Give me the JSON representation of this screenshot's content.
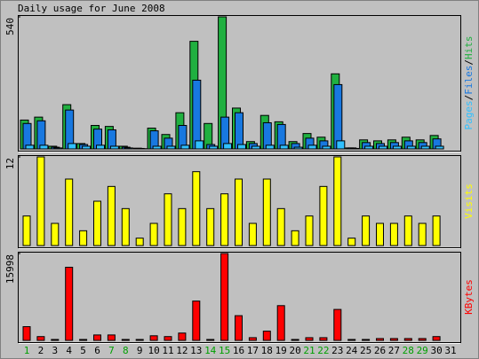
{
  "chart_data": [
    {
      "type": "bar",
      "title": "Daily usage for June 2008",
      "categories": [
        "1",
        "2",
        "3",
        "4",
        "5",
        "6",
        "7",
        "8",
        "9",
        "10",
        "11",
        "12",
        "13",
        "14",
        "15",
        "16",
        "17",
        "18",
        "19",
        "20",
        "21",
        "22",
        "23",
        "24",
        "25",
        "26",
        "27",
        "28",
        "29",
        "30",
        "31"
      ],
      "category_colors": [
        "#00a000",
        "#000000",
        "#000000",
        "#000000",
        "#000000",
        "#000000",
        "#00a000",
        "#00a000",
        "#000000",
        "#000000",
        "#000000",
        "#000000",
        "#000000",
        "#00a000",
        "#00a000",
        "#000000",
        "#000000",
        "#000000",
        "#000000",
        "#000000",
        "#00a000",
        "#00a000",
        "#000000",
        "#000000",
        "#000000",
        "#000000",
        "#000000",
        "#00a000",
        "#00a000",
        "#000000",
        "#000000"
      ],
      "legend_separator": "/",
      "ylim": [
        0,
        540
      ],
      "yticks": [
        540
      ],
      "series": [
        {
          "name": "Hits",
          "color": "#20b040",
          "values": [
            118,
            130,
            11,
            181,
            22,
            96,
            92,
            11,
            3,
            85,
            59,
            148,
            440,
            104,
            540,
            167,
            30,
            137,
            111,
            30,
            63,
            48,
            307,
            4,
            37,
            33,
            37,
            48,
            37,
            55,
            0
          ]
        },
        {
          "name": "Files",
          "color": "#1878e0",
          "values": [
            104,
            115,
            7,
            159,
            18,
            81,
            78,
            7,
            2,
            74,
            44,
            96,
            281,
            18,
            130,
            148,
            22,
            107,
            100,
            22,
            44,
            33,
            263,
            4,
            26,
            22,
            26,
            33,
            26,
            41,
            0
          ]
        },
        {
          "name": "Pages",
          "color": "#30c0ff",
          "values": [
            15,
            15,
            4,
            22,
            11,
            15,
            11,
            4,
            1,
            11,
            11,
            15,
            33,
            11,
            22,
            18,
            11,
            15,
            15,
            7,
            15,
            11,
            33,
            2,
            11,
            11,
            11,
            11,
            11,
            11,
            0
          ]
        }
      ]
    },
    {
      "type": "bar",
      "ylim": [
        0,
        12
      ],
      "yticks": [
        12
      ],
      "series": [
        {
          "name": "Visits",
          "color": "#ffff00",
          "values": [
            4,
            12,
            3,
            9,
            2,
            6,
            8,
            5,
            1,
            3,
            7,
            5,
            10,
            5,
            7,
            9,
            3,
            9,
            5,
            2,
            4,
            8,
            12,
            1,
            4,
            3,
            3,
            4,
            3,
            4,
            0
          ]
        }
      ]
    },
    {
      "type": "bar",
      "ylim": [
        0,
        15998
      ],
      "yticks": [
        15998
      ],
      "series": [
        {
          "name": "KBytes",
          "color": "#ff0000",
          "values": [
            2526,
            700,
            170,
            13470,
            170,
            1000,
            1000,
            170,
            170,
            850,
            700,
            1350,
            7240,
            170,
            15998,
            4550,
            500,
            1700,
            6400,
            170,
            500,
            500,
            5700,
            170,
            170,
            340,
            340,
            340,
            340,
            700,
            0
          ]
        }
      ]
    }
  ]
}
